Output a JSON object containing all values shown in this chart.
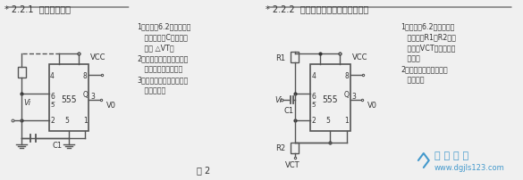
{
  "bg_color": "#f0f0f0",
  "title1": "* 2.2.1  施密特触发器",
  "title2": "* 2.2.2  阈值电压可调的施密特触发器",
  "fig2_label": "图 2",
  "left_text": [
    "1）特点：6.2端短接作输",
    "   入，输入无C，有滞后",
    "   电压 △VT。",
    "2）用途：电子开关、监控",
    "   告警、脉冲整形等。",
    "3）别名：滞后比较器、反",
    "   相比较器。"
  ],
  "right_text": [
    "1）特点：6.2端短接作输",
    "   入，变化R1、R2的值",
    "   或改变VCT以调整阈值",
    "   电压。",
    "2）用途：方波输出、脉",
    "   冲整形。"
  ],
  "watermark_line1": "电 工 天 下",
  "watermark_line2": "www.dgjls123.com",
  "line_color": "#555555",
  "text_color": "#333333",
  "watermark_color": "#4499cc"
}
